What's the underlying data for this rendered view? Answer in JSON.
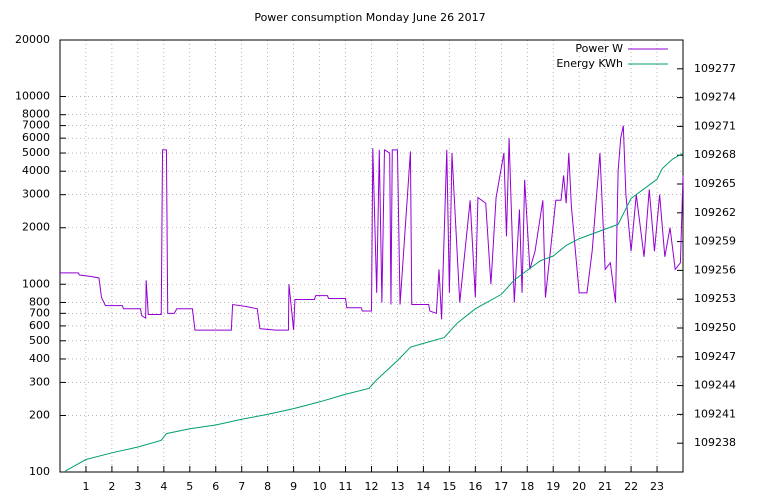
{
  "chart_data": {
    "type": "line",
    "title": "Power consumption Monday June 26 2017",
    "log_y": true,
    "grid": true,
    "legend": "top-right",
    "xlim": [
      0,
      24
    ],
    "xticks": [
      1,
      2,
      3,
      4,
      5,
      6,
      7,
      8,
      9,
      10,
      11,
      12,
      13,
      14,
      15,
      16,
      17,
      18,
      19,
      20,
      21,
      22,
      23
    ],
    "ylim": [
      100,
      20000
    ],
    "yticks": [
      100,
      200,
      300,
      400,
      500,
      600,
      700,
      800,
      1000,
      2000,
      3000,
      4000,
      5000,
      6000,
      7000,
      8000,
      10000,
      20000
    ],
    "y2lim": [
      109235,
      109280
    ],
    "y2ticks": [
      109238,
      109241,
      109244,
      109247,
      109250,
      109253,
      109256,
      109259,
      109262,
      109265,
      109268,
      109271,
      109274,
      109277
    ],
    "series": [
      {
        "name": "Power W",
        "color": "#9400d3",
        "x": [
          0,
          0.7,
          0.75,
          1.2,
          1.5,
          1.6,
          1.75,
          2.4,
          2.45,
          3.1,
          3.15,
          3.3,
          3.32,
          3.4,
          3.9,
          3.95,
          4.1,
          4.15,
          4.4,
          4.5,
          5.1,
          5.2,
          6.6,
          6.65,
          7.2,
          7.6,
          7.7,
          8.3,
          8.8,
          8.82,
          9.0,
          9.05,
          9.8,
          9.85,
          10.3,
          10.35,
          11.0,
          11.05,
          11.6,
          11.65,
          12.0,
          12.05,
          12.2,
          12.3,
          12.4,
          12.5,
          12.7,
          12.75,
          12.8,
          13.0,
          13.1,
          13.5,
          13.55,
          14.2,
          14.25,
          14.5,
          14.6,
          14.7,
          14.9,
          15.0,
          15.1,
          15.2,
          15.4,
          15.6,
          15.8,
          16.0,
          16.1,
          16.4,
          16.6,
          16.8,
          17.1,
          17.2,
          17.3,
          17.5,
          17.7,
          17.8,
          17.9,
          18.1,
          18.3,
          18.6,
          18.7,
          19.1,
          19.3,
          19.4,
          19.5,
          19.6,
          19.7,
          20.0,
          20.3,
          20.5,
          20.8,
          21.0,
          21.2,
          21.4,
          21.5,
          21.6,
          21.7,
          21.8,
          22.0,
          22.2,
          22.5,
          22.7,
          22.9,
          23.1,
          23.3,
          23.5,
          23.7,
          23.9,
          24
        ],
        "values": [
          1150,
          1150,
          1120,
          1100,
          1080,
          850,
          770,
          770,
          740,
          740,
          680,
          660,
          1050,
          690,
          690,
          5200,
          5200,
          700,
          700,
          740,
          740,
          570,
          570,
          780,
          760,
          740,
          580,
          570,
          570,
          1000,
          570,
          830,
          830,
          870,
          870,
          840,
          840,
          750,
          750,
          720,
          720,
          5300,
          900,
          5200,
          800,
          5200,
          5000,
          780,
          5200,
          5200,
          780,
          5100,
          780,
          780,
          720,
          700,
          1200,
          650,
          5200,
          900,
          5000,
          2700,
          800,
          1500,
          2800,
          850,
          2900,
          2700,
          1000,
          2900,
          5000,
          1800,
          6000,
          800,
          2500,
          900,
          3600,
          1200,
          1500,
          2800,
          850,
          2800,
          2800,
          3800,
          2700,
          5000,
          2600,
          900,
          900,
          1500,
          5000,
          1200,
          1300,
          800,
          4000,
          6000,
          7000,
          3000,
          1500,
          3000,
          1400,
          3200,
          1500,
          3000,
          1400,
          2000,
          1200,
          1300,
          3800
        ]
      },
      {
        "name": "Energy KWh",
        "color": "#009e73",
        "axis": "y2",
        "x": [
          0.2,
          1,
          2,
          3,
          3.9,
          4.1,
          5,
          6,
          7,
          8,
          9,
          10,
          11,
          11.9,
          12.2,
          12.6,
          13,
          13.5,
          14,
          14.8,
          15.3,
          16,
          17,
          17.5,
          18,
          18.5,
          19,
          19.5,
          20,
          21,
          21.5,
          22,
          22.5,
          23,
          23.2,
          23.6,
          24
        ],
        "values": [
          109235.1,
          109236.3,
          109237,
          109237.6,
          109238.3,
          109239,
          109239.5,
          109239.9,
          109240.5,
          109241,
          109241.6,
          109242.3,
          109243.1,
          109243.7,
          109244.6,
          109245.6,
          109246.6,
          109248,
          109248.4,
          109249,
          109250.5,
          109252,
          109253.5,
          109255,
          109256,
          109257,
          109257.5,
          109258.6,
          109259.3,
          109260.3,
          109260.8,
          109263.5,
          109264.5,
          109265.5,
          109266.6,
          109267.6,
          109268.2
        ]
      }
    ]
  }
}
